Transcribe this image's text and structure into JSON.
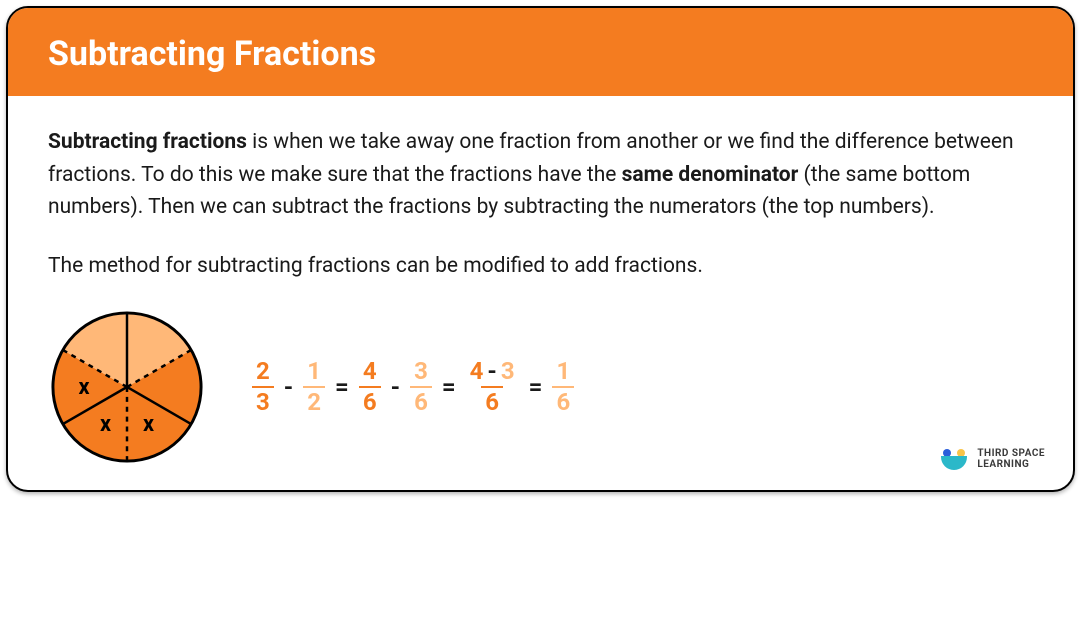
{
  "colors": {
    "primary": "#f47c20",
    "primary_light": "#ffb878",
    "text": "#1a1a1a",
    "black": "#000000",
    "logo_blue": "#2b5fda",
    "logo_yellow": "#f9c449",
    "logo_arc": "#2bb8c9"
  },
  "typography": {
    "title_fontsize": 34,
    "body_fontsize": 21,
    "equation_fontsize": 24
  },
  "header": {
    "title": "Subtracting Fractions"
  },
  "body": {
    "para1_lead": "Subtracting fractions",
    "para1_mid1": " is when we take away one fraction from another or we find the difference between fractions. To do this we make sure that the fractions have the ",
    "para1_bold2": "same denominator",
    "para1_mid2": " (the same bottom numbers).  Then we can subtract the fractions by subtracting the numerators (the top numbers).",
    "para2": "The method for subtracting fractions can be modified to add fractions."
  },
  "pie": {
    "slices": 6,
    "darker_slices": [
      0,
      1,
      2,
      3
    ],
    "lighter_slices": [
      4,
      5
    ],
    "solid_dividers": [
      0,
      2,
      4
    ],
    "dashed_dividers": [
      1,
      3,
      5
    ],
    "x_marks": [
      "x",
      "x",
      "x"
    ],
    "x_positions": [
      [
        1
      ],
      [
        2
      ],
      [
        3
      ]
    ]
  },
  "equation": {
    "terms": [
      {
        "type": "frac",
        "num": "2",
        "den": "3",
        "color": "#f47c20"
      },
      {
        "type": "op",
        "text": "-"
      },
      {
        "type": "frac",
        "num": "1",
        "den": "2",
        "color": "#ffb878"
      },
      {
        "type": "op",
        "text": "="
      },
      {
        "type": "frac",
        "num": "4",
        "den": "6",
        "color": "#f47c20"
      },
      {
        "type": "op",
        "text": "-"
      },
      {
        "type": "frac",
        "num": "3",
        "den": "6",
        "color": "#ffb878"
      },
      {
        "type": "op",
        "text": "="
      },
      {
        "type": "frac_expr",
        "num_a": "4",
        "num_op": "-",
        "num_b": "3",
        "den": "6",
        "color_a": "#f47c20",
        "color_b": "#ffb878",
        "bar_color": "#f47c20",
        "den_color": "#f47c20"
      },
      {
        "type": "op",
        "text": "="
      },
      {
        "type": "frac",
        "num": "1",
        "den": "6",
        "color": "#ffb878"
      }
    ]
  },
  "logo": {
    "line1": "THIRD SPACE",
    "line2": "LEARNING"
  }
}
